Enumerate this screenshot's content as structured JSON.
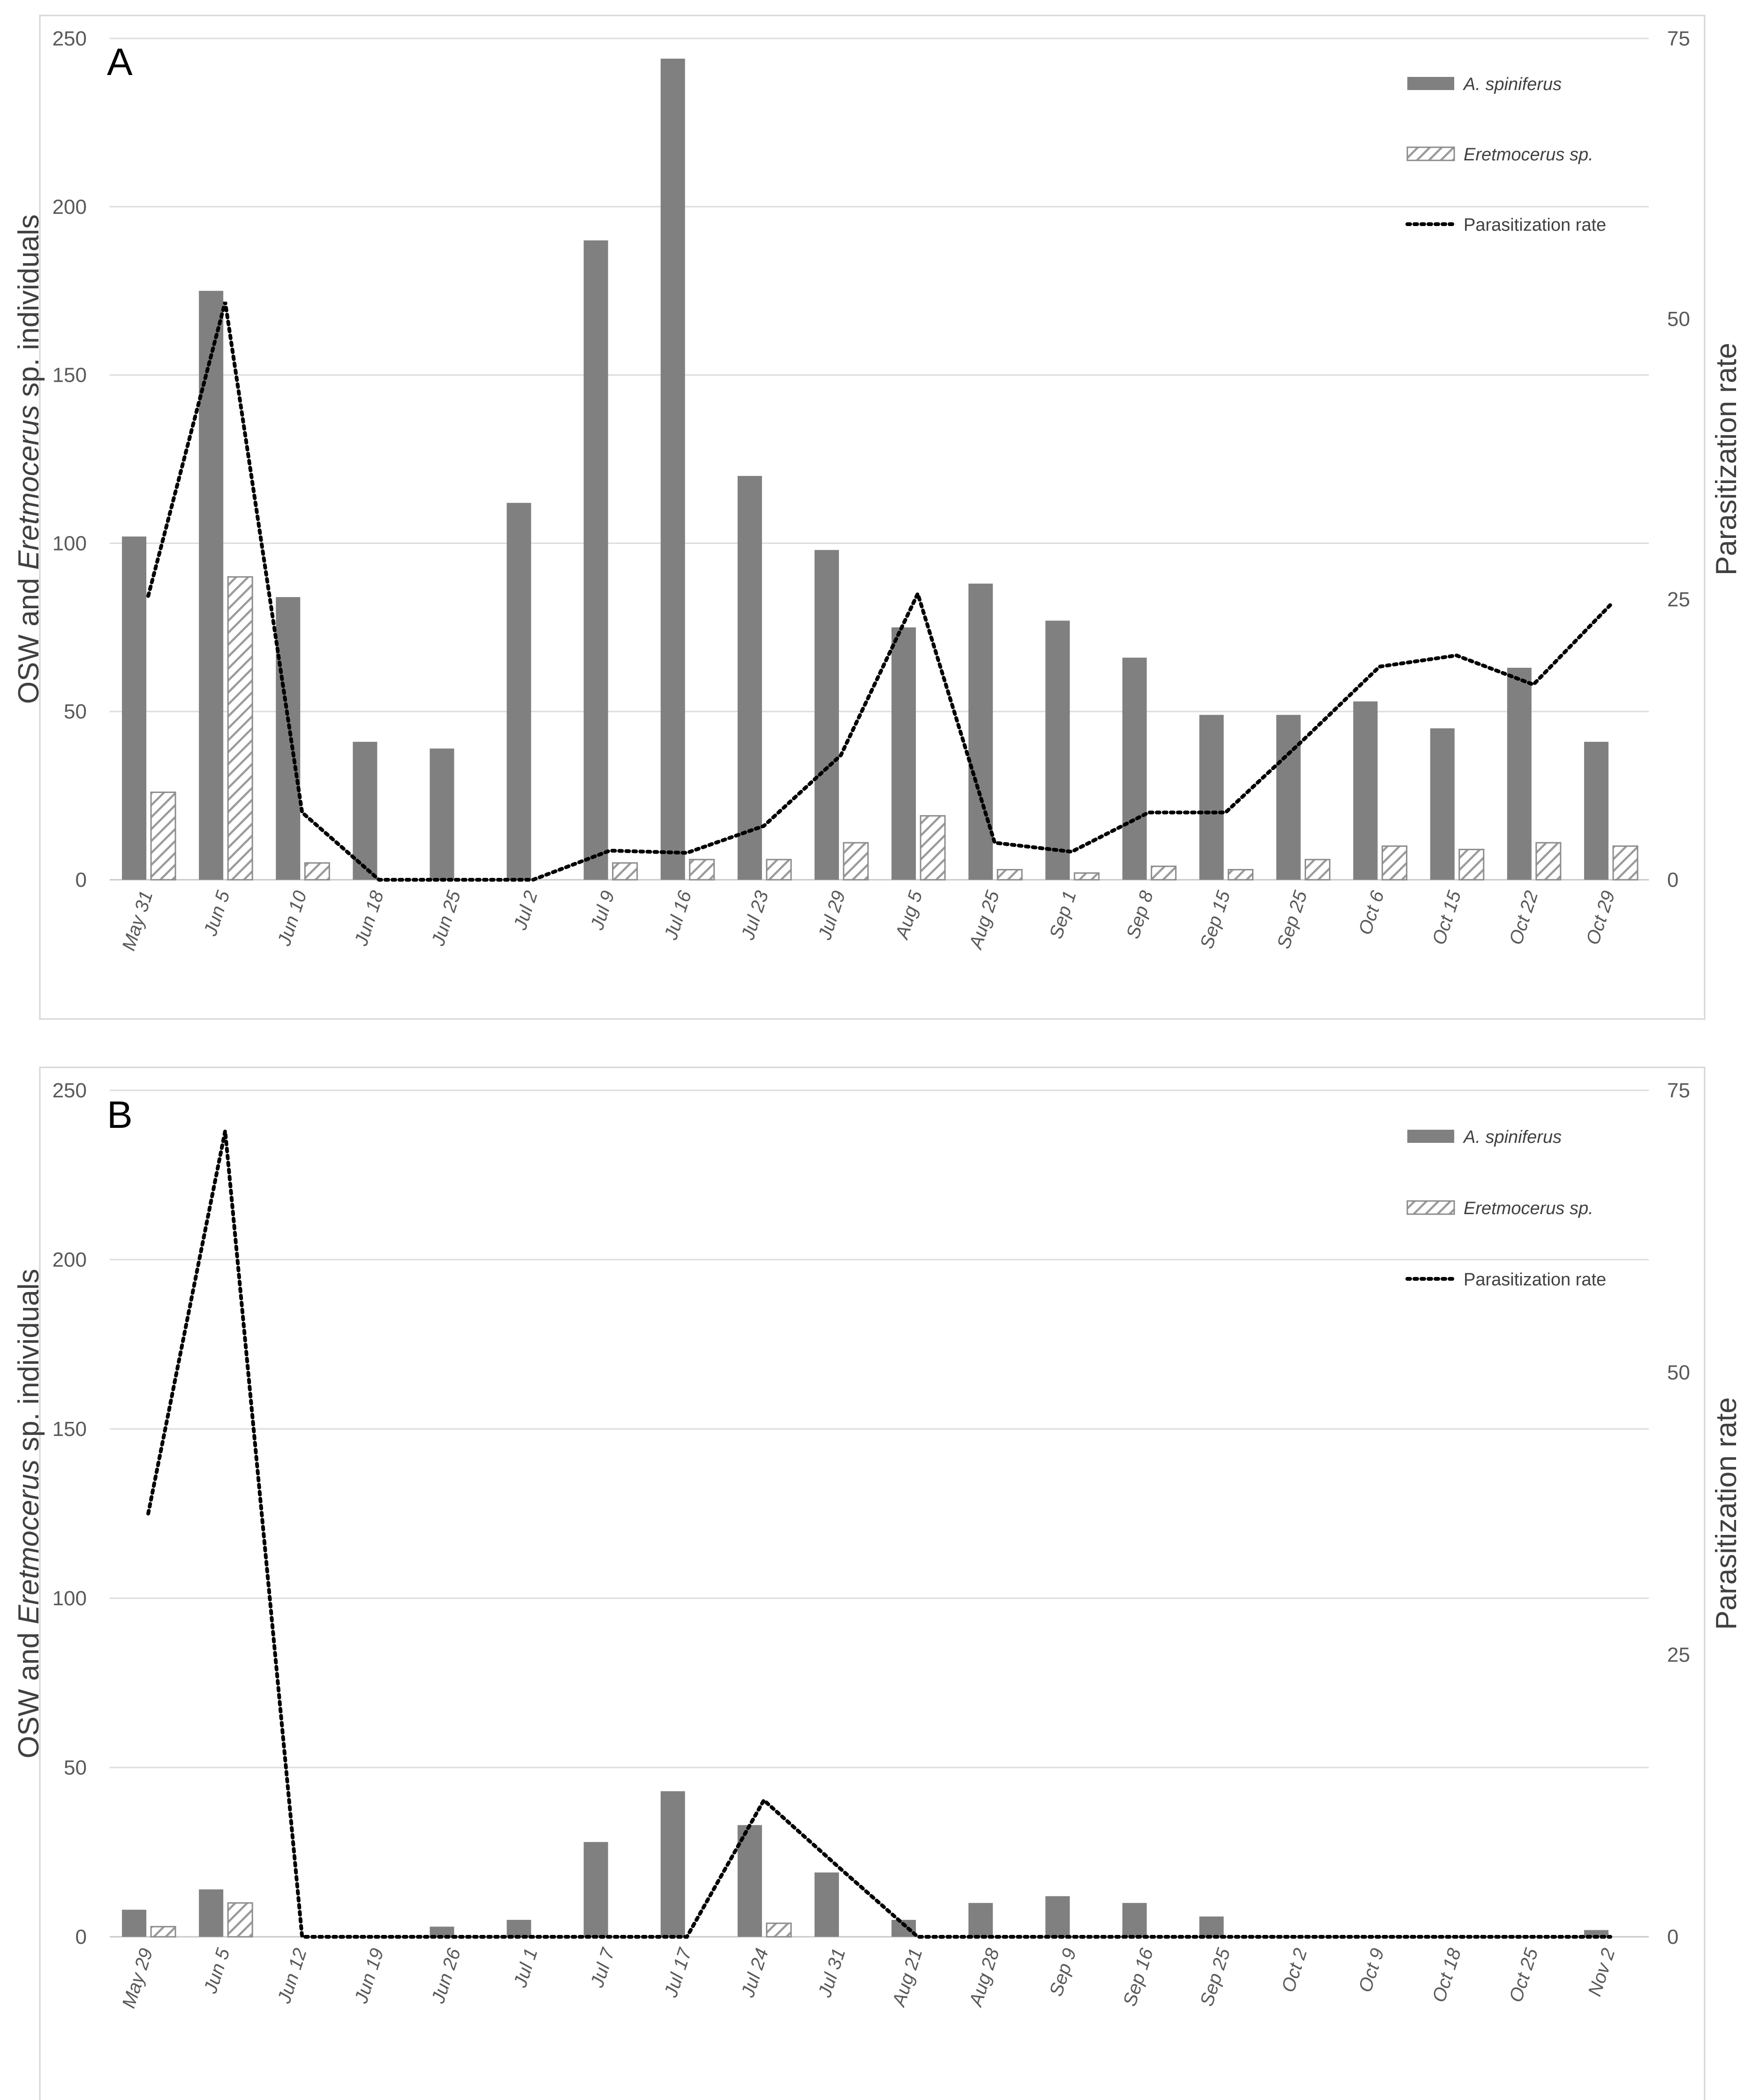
{
  "chart_data": [
    {
      "panel_label": "A",
      "type": "bar",
      "ylabel_parts": [
        "OSW and ",
        "Eretmocerus",
        " sp. individuals"
      ],
      "y2label": "Parasitization rate",
      "ylim": [
        0,
        250
      ],
      "y_ticks": [
        "0",
        "50",
        "100",
        "150",
        "200",
        "250"
      ],
      "y2lim": [
        0,
        75
      ],
      "y2_ticks": [
        "0",
        "25",
        "50",
        "75"
      ],
      "grid": true,
      "legend_position": "top-right",
      "categories": [
        "May 31",
        "Jun 5",
        "Jun 10",
        "Jun 18",
        "Jun 25",
        "Jul 2",
        "Jul 9",
        "Jul 16",
        "Jul 23",
        "Jul 29",
        "Aug 5",
        "Aug 25",
        "Sep 1",
        "Sep 8",
        "Sep 15",
        "Sep 25",
        "Oct 6",
        "Oct 15",
        "Oct 22",
        "Oct 29"
      ],
      "series": [
        {
          "name": "A. spiniferus",
          "kind": "bar",
          "style": "solid",
          "color": "#808080",
          "values": [
            102,
            175,
            84,
            41,
            39,
            112,
            190,
            244,
            120,
            98,
            75,
            88,
            77,
            66,
            49,
            49,
            53,
            45,
            63,
            41
          ]
        },
        {
          "name": "Eretmocerus sp.",
          "kind": "bar",
          "style": "hatched",
          "color": "#a0a0a0",
          "values": [
            26,
            90,
            5,
            0,
            0,
            0,
            5,
            6,
            6,
            11,
            19,
            3,
            2,
            4,
            3,
            6,
            10,
            9,
            11,
            10
          ]
        },
        {
          "name": "Parasitization rate",
          "kind": "line",
          "style": "dotted",
          "axis": "right",
          "color": "#000000",
          "values": [
            25.3,
            51.5,
            6.0,
            0,
            0,
            0,
            2.6,
            2.4,
            4.8,
            11.1,
            25.5,
            3.3,
            2.5,
            6.0,
            6.0,
            12.4,
            19.0,
            20.0,
            17.4,
            24.5
          ]
        }
      ]
    },
    {
      "panel_label": "B",
      "type": "bar",
      "ylabel_parts": [
        "OSW and ",
        "Eretmocerus",
        " sp. individuals"
      ],
      "y2label": "Parasitization rate",
      "ylim": [
        0,
        250
      ],
      "y_ticks": [
        "0",
        "50",
        "100",
        "150",
        "200",
        "250"
      ],
      "y2lim": [
        0,
        75
      ],
      "y2_ticks": [
        "0",
        "25",
        "50",
        "75"
      ],
      "grid": true,
      "legend_position": "top-right",
      "categories": [
        "May 29",
        "Jun 5",
        "Jun 12",
        "Jun 19",
        "Jun 26",
        "Jul 1",
        "Jul 7",
        "Jul 17",
        "Jul 24",
        "Jul 31",
        "Aug 21",
        "Aug 28",
        "Sep 9",
        "Sep 16",
        "Sep 25",
        "Oct 2",
        "Oct 9",
        "Oct 18",
        "Oct 25",
        "Nov 2"
      ],
      "series": [
        {
          "name": "A. spiniferus",
          "kind": "bar",
          "style": "solid",
          "color": "#808080",
          "values": [
            8,
            14,
            0,
            0,
            3,
            5,
            28,
            43,
            33,
            19,
            5,
            10,
            12,
            10,
            6,
            0,
            0,
            0,
            0,
            2
          ]
        },
        {
          "name": "Eretmocerus sp.",
          "kind": "bar",
          "style": "hatched",
          "color": "#a0a0a0",
          "values": [
            3,
            10,
            0,
            0,
            0,
            0,
            0,
            0,
            4,
            0,
            0,
            0,
            0,
            0,
            0,
            0,
            0,
            0,
            0,
            0
          ]
        },
        {
          "name": "Parasitization rate",
          "kind": "line",
          "style": "dotted",
          "axis": "right",
          "color": "#000000",
          "values": [
            37.5,
            71.4,
            0,
            0,
            0,
            0,
            0,
            0,
            12.1,
            6.0,
            0,
            0,
            0,
            0,
            0,
            0,
            0,
            0,
            0,
            0
          ]
        }
      ]
    }
  ]
}
